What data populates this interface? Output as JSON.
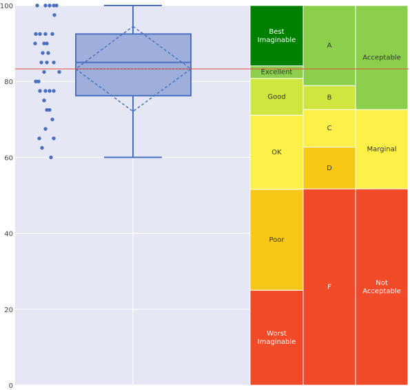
{
  "chart_data": {
    "type": "box",
    "title": "",
    "xlabel": "",
    "ylabel": "",
    "ylim": [
      0,
      100
    ],
    "y_ticks": [
      0,
      20,
      40,
      60,
      80,
      100
    ],
    "grid": true,
    "legend": "none",
    "points": [
      100,
      100,
      100,
      100,
      100,
      97.5,
      92.5,
      92.5,
      92.5,
      92.5,
      90,
      90,
      90,
      87.5,
      87.5,
      85,
      85,
      85,
      82.5,
      82.5,
      80,
      80,
      77.5,
      77.5,
      77.5,
      77.5,
      75,
      72.5,
      72.5,
      70,
      67.5,
      65,
      65,
      62.5,
      60
    ],
    "box": {
      "min": 60,
      "q1": 76.25,
      "median": 85,
      "q3": 92.5,
      "max": 100,
      "mean": 83.3,
      "sd": 11.2
    },
    "reference_line": {
      "value": 83.3,
      "color": "#e8483a"
    },
    "scales": [
      {
        "name": "adjective",
        "bands": [
          {
            "label": "Worst Imaginable",
            "from": 0,
            "to": 25,
            "color": "#f04a28",
            "text_color": "#ffffff"
          },
          {
            "label": "Poor",
            "from": 25,
            "to": 51.6,
            "color": "#f9c718",
            "text_color": "#333333"
          },
          {
            "label": "OK",
            "from": 51.6,
            "to": 71.1,
            "color": "#fdf049",
            "text_color": "#333333"
          },
          {
            "label": "Good",
            "from": 71.1,
            "to": 80.8,
            "color": "#cfe540",
            "text_color": "#333333"
          },
          {
            "label": "Excellent",
            "from": 80.8,
            "to": 84.1,
            "color": "#8ccf4d",
            "text_color": "#333333"
          },
          {
            "label": "Best Imaginable",
            "from": 84.1,
            "to": 100,
            "color": "#008000",
            "text_color": "#ffffff"
          }
        ]
      },
      {
        "name": "grade",
        "bands": [
          {
            "label": "F",
            "from": 0,
            "to": 51.7,
            "color": "#f04a28",
            "text_color": "#ffffff"
          },
          {
            "label": "D",
            "from": 51.7,
            "to": 62.7,
            "color": "#f9c718",
            "text_color": "#333333"
          },
          {
            "label": "C",
            "from": 62.7,
            "to": 72.6,
            "color": "#fdf049",
            "text_color": "#333333"
          },
          {
            "label": "B",
            "from": 72.6,
            "to": 78.9,
            "color": "#cfe540",
            "text_color": "#333333"
          },
          {
            "label": "A",
            "from": 78.9,
            "to": 100,
            "color": "#8ccf4d",
            "text_color": "#333333"
          }
        ]
      },
      {
        "name": "acceptability",
        "bands": [
          {
            "label": "Not Acceptable",
            "from": 0,
            "to": 51.7,
            "color": "#f04a28",
            "text_color": "#ffffff"
          },
          {
            "label": "Marginal",
            "from": 51.7,
            "to": 72.6,
            "color": "#fdf049",
            "text_color": "#333333"
          },
          {
            "label": "Acceptable",
            "from": 72.6,
            "to": 100,
            "color": "#8ccf4d",
            "text_color": "#333333"
          }
        ]
      }
    ],
    "colors": {
      "plot_bg": "#e5e8f4",
      "grid": "#ffffff",
      "box_fill": "#9eafdb",
      "box_stroke": "#4a6fc0",
      "points": "#4a6fc0"
    }
  }
}
